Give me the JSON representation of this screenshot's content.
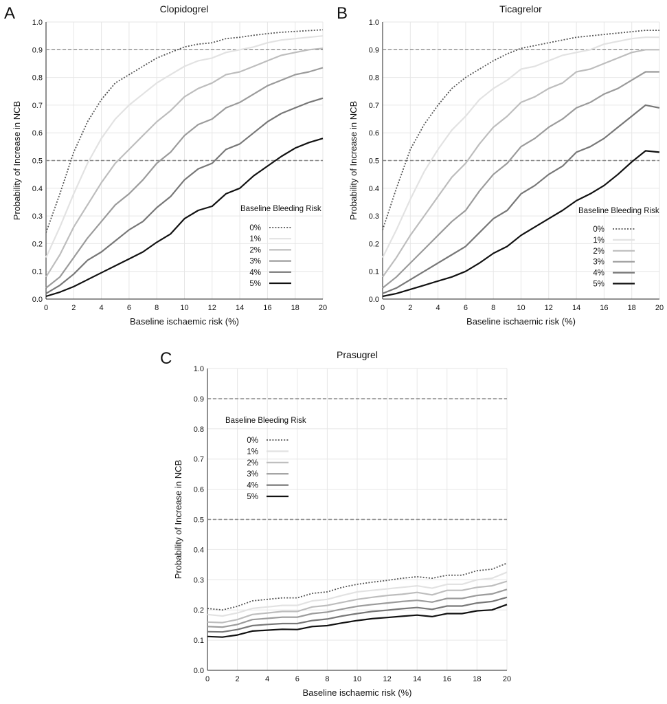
{
  "chart_data": [
    {
      "panel": "A",
      "type": "line",
      "title": "Clopidogrel",
      "xlabel": "Baseline ischaemic risk (%)",
      "ylabel": "Probability of Increase in NCB",
      "xlim": [
        0,
        20
      ],
      "ylim": [
        0,
        1
      ],
      "xticks": [
        "0",
        "2",
        "4",
        "6",
        "8",
        "10",
        "12",
        "14",
        "16",
        "18",
        "20"
      ],
      "yticks": [
        "0.0",
        "0.1",
        "0.2",
        "0.3",
        "0.4",
        "0.5",
        "0.6",
        "0.7",
        "0.8",
        "0.9",
        "1.0"
      ],
      "grid": true,
      "reference_lines": [
        0.5,
        0.9
      ],
      "legend_title": "Baseline Bleeding Risk",
      "legend_position": "right",
      "x": [
        0,
        1,
        2,
        3,
        4,
        5,
        6,
        7,
        8,
        9,
        10,
        11,
        12,
        13,
        14,
        15,
        16,
        17,
        18,
        19,
        20
      ],
      "series": [
        {
          "name": "0%",
          "color": "#555555",
          "style": "dotted",
          "values": [
            0.24,
            0.38,
            0.53,
            0.64,
            0.72,
            0.78,
            0.81,
            0.84,
            0.87,
            0.89,
            0.91,
            0.92,
            0.925,
            0.94,
            0.945,
            0.952,
            0.958,
            0.963,
            0.966,
            0.969,
            0.972
          ]
        },
        {
          "name": "1%",
          "color": "#e2e2e2",
          "style": "solid",
          "values": [
            0.15,
            0.26,
            0.38,
            0.49,
            0.58,
            0.65,
            0.7,
            0.74,
            0.78,
            0.81,
            0.84,
            0.86,
            0.87,
            0.89,
            0.9,
            0.91,
            0.925,
            0.935,
            0.94,
            0.945,
            0.95
          ]
        },
        {
          "name": "2%",
          "color": "#bdbdbd",
          "style": "solid",
          "values": [
            0.08,
            0.16,
            0.26,
            0.34,
            0.42,
            0.49,
            0.54,
            0.59,
            0.64,
            0.68,
            0.73,
            0.76,
            0.78,
            0.81,
            0.82,
            0.84,
            0.86,
            0.88,
            0.89,
            0.9,
            0.905
          ]
        },
        {
          "name": "3%",
          "color": "#9b9b9b",
          "style": "solid",
          "values": [
            0.04,
            0.08,
            0.15,
            0.22,
            0.28,
            0.34,
            0.38,
            0.43,
            0.49,
            0.53,
            0.59,
            0.63,
            0.65,
            0.69,
            0.71,
            0.74,
            0.77,
            0.79,
            0.81,
            0.82,
            0.835
          ]
        },
        {
          "name": "4%",
          "color": "#777777",
          "style": "solid",
          "values": [
            0.02,
            0.05,
            0.09,
            0.14,
            0.17,
            0.21,
            0.25,
            0.28,
            0.33,
            0.37,
            0.43,
            0.47,
            0.49,
            0.54,
            0.56,
            0.6,
            0.64,
            0.67,
            0.69,
            0.71,
            0.725
          ]
        },
        {
          "name": "5%",
          "color": "#111111",
          "style": "solid",
          "values": [
            0.01,
            0.025,
            0.045,
            0.07,
            0.095,
            0.12,
            0.145,
            0.17,
            0.205,
            0.235,
            0.29,
            0.32,
            0.335,
            0.38,
            0.4,
            0.445,
            0.48,
            0.515,
            0.545,
            0.565,
            0.58
          ]
        }
      ]
    },
    {
      "panel": "B",
      "type": "line",
      "title": "Ticagrelor",
      "xlabel": "Baseline ischaemic risk (%)",
      "ylabel": "Probability of Increase in NCB",
      "xlim": [
        0,
        20
      ],
      "ylim": [
        0,
        1
      ],
      "xticks": [
        "0",
        "2",
        "4",
        "6",
        "8",
        "10",
        "12",
        "14",
        "16",
        "18",
        "20"
      ],
      "yticks": [
        "0.0",
        "0.1",
        "0.2",
        "0.3",
        "0.4",
        "0.5",
        "0.6",
        "0.7",
        "0.8",
        "0.9",
        "1.0"
      ],
      "grid": true,
      "reference_lines": [
        0.5,
        0.9
      ],
      "legend_title": "Baseline Bleeding Risk",
      "legend_position": "right",
      "x": [
        0,
        1,
        2,
        3,
        4,
        5,
        6,
        7,
        8,
        9,
        10,
        11,
        12,
        13,
        14,
        15,
        16,
        17,
        18,
        19,
        20
      ],
      "series": [
        {
          "name": "0%",
          "color": "#555555",
          "style": "dotted",
          "values": [
            0.25,
            0.4,
            0.54,
            0.63,
            0.7,
            0.76,
            0.8,
            0.83,
            0.86,
            0.885,
            0.905,
            0.915,
            0.925,
            0.935,
            0.945,
            0.95,
            0.955,
            0.96,
            0.965,
            0.97,
            0.97
          ]
        },
        {
          "name": "1%",
          "color": "#e2e2e2",
          "style": "solid",
          "values": [
            0.15,
            0.25,
            0.36,
            0.46,
            0.54,
            0.61,
            0.66,
            0.72,
            0.76,
            0.79,
            0.83,
            0.84,
            0.86,
            0.88,
            0.89,
            0.9,
            0.92,
            0.93,
            0.94,
            0.945,
            0.945
          ]
        },
        {
          "name": "2%",
          "color": "#bdbdbd",
          "style": "solid",
          "values": [
            0.08,
            0.15,
            0.23,
            0.3,
            0.37,
            0.44,
            0.49,
            0.56,
            0.62,
            0.66,
            0.71,
            0.73,
            0.76,
            0.78,
            0.82,
            0.83,
            0.85,
            0.87,
            0.89,
            0.9,
            0.9
          ]
        },
        {
          "name": "3%",
          "color": "#9b9b9b",
          "style": "solid",
          "values": [
            0.04,
            0.08,
            0.13,
            0.18,
            0.23,
            0.28,
            0.32,
            0.39,
            0.45,
            0.49,
            0.55,
            0.58,
            0.62,
            0.65,
            0.69,
            0.71,
            0.74,
            0.76,
            0.79,
            0.82,
            0.82
          ]
        },
        {
          "name": "4%",
          "color": "#777777",
          "style": "solid",
          "values": [
            0.02,
            0.04,
            0.07,
            0.1,
            0.13,
            0.16,
            0.19,
            0.24,
            0.29,
            0.32,
            0.38,
            0.41,
            0.45,
            0.48,
            0.53,
            0.55,
            0.58,
            0.62,
            0.66,
            0.7,
            0.69
          ]
        },
        {
          "name": "5%",
          "color": "#111111",
          "style": "solid",
          "values": [
            0.01,
            0.02,
            0.035,
            0.05,
            0.065,
            0.08,
            0.1,
            0.13,
            0.165,
            0.19,
            0.23,
            0.26,
            0.29,
            0.32,
            0.355,
            0.38,
            0.41,
            0.45,
            0.495,
            0.535,
            0.53
          ]
        }
      ]
    },
    {
      "panel": "C",
      "type": "line",
      "title": "Prasugrel",
      "xlabel": "Baseline ischaemic risk (%)",
      "ylabel": "Probability of Increase in NCB",
      "xlim": [
        0,
        20
      ],
      "ylim": [
        0,
        1
      ],
      "xticks": [
        "0",
        "2",
        "4",
        "6",
        "8",
        "10",
        "12",
        "14",
        "16",
        "18",
        "20"
      ],
      "yticks": [
        "0.0",
        "0.1",
        "0.2",
        "0.3",
        "0.4",
        "0.5",
        "0.6",
        "0.7",
        "0.8",
        "0.9",
        "1.0"
      ],
      "grid": true,
      "reference_lines": [
        0.5,
        0.9
      ],
      "legend_title": "Baseline Bleeding Risk",
      "legend_position": "top-left",
      "x": [
        0,
        1,
        2,
        3,
        4,
        5,
        6,
        7,
        8,
        9,
        10,
        11,
        12,
        13,
        14,
        15,
        16,
        17,
        18,
        19,
        20
      ],
      "series": [
        {
          "name": "0%",
          "color": "#555555",
          "style": "dotted",
          "values": [
            0.205,
            0.2,
            0.212,
            0.23,
            0.235,
            0.24,
            0.24,
            0.255,
            0.26,
            0.275,
            0.285,
            0.292,
            0.298,
            0.305,
            0.31,
            0.305,
            0.315,
            0.315,
            0.33,
            0.335,
            0.355
          ]
        },
        {
          "name": "1%",
          "color": "#e2e2e2",
          "style": "solid",
          "values": [
            0.185,
            0.18,
            0.19,
            0.205,
            0.21,
            0.215,
            0.215,
            0.23,
            0.235,
            0.248,
            0.26,
            0.265,
            0.27,
            0.275,
            0.28,
            0.272,
            0.285,
            0.285,
            0.3,
            0.305,
            0.325
          ]
        },
        {
          "name": "2%",
          "color": "#bdbdbd",
          "style": "solid",
          "values": [
            0.16,
            0.158,
            0.168,
            0.185,
            0.19,
            0.195,
            0.195,
            0.21,
            0.215,
            0.225,
            0.235,
            0.242,
            0.248,
            0.252,
            0.258,
            0.25,
            0.265,
            0.265,
            0.275,
            0.28,
            0.295
          ]
        },
        {
          "name": "3%",
          "color": "#9b9b9b",
          "style": "solid",
          "values": [
            0.145,
            0.143,
            0.152,
            0.168,
            0.172,
            0.176,
            0.176,
            0.188,
            0.193,
            0.203,
            0.212,
            0.218,
            0.223,
            0.228,
            0.232,
            0.226,
            0.238,
            0.238,
            0.248,
            0.253,
            0.268
          ]
        },
        {
          "name": "4%",
          "color": "#777777",
          "style": "solid",
          "values": [
            0.128,
            0.127,
            0.135,
            0.148,
            0.152,
            0.155,
            0.155,
            0.165,
            0.17,
            0.18,
            0.188,
            0.195,
            0.199,
            0.204,
            0.208,
            0.202,
            0.213,
            0.213,
            0.223,
            0.228,
            0.242
          ]
        },
        {
          "name": "5%",
          "color": "#111111",
          "style": "solid",
          "values": [
            0.112,
            0.11,
            0.117,
            0.13,
            0.133,
            0.136,
            0.135,
            0.145,
            0.148,
            0.157,
            0.165,
            0.171,
            0.175,
            0.179,
            0.183,
            0.178,
            0.188,
            0.188,
            0.197,
            0.2,
            0.218
          ]
        }
      ]
    }
  ]
}
